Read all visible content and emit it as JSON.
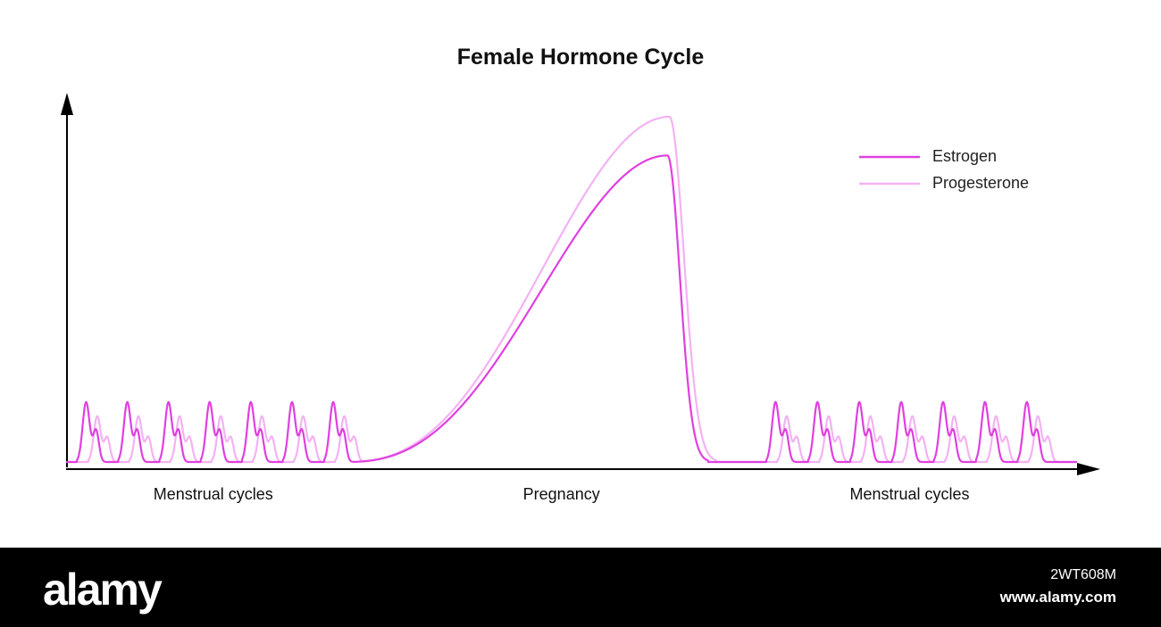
{
  "chart_data": {
    "type": "line",
    "title": "Female Hormone Cycle",
    "xlabel": "",
    "ylabel": "",
    "grid": false,
    "legend_position": "top-right",
    "x_range": [
      0,
      100
    ],
    "y_range": [
      0,
      100
    ],
    "phases": [
      {
        "label": "Menstrual cycles",
        "x": 14.5
      },
      {
        "label": "Pregnancy",
        "x": 49.0
      },
      {
        "label": "Menstrual cycles",
        "x": 83.5
      }
    ],
    "series": [
      {
        "name": "Estrogen",
        "color": "#e040e0",
        "cycles": {
          "first": {
            "count": 7,
            "start": 1.0,
            "period": 4.08,
            "main_peak": 17,
            "secondary_peak": 9
          },
          "second": {
            "count": 7,
            "start": 69.3,
            "period": 4.15,
            "main_peak": 17,
            "secondary_peak": 9
          }
        },
        "pregnancy": {
          "start": 27.5,
          "peak_x": 59.5,
          "peak": 87,
          "end": 63.5
        }
      },
      {
        "name": "Progesterone",
        "color": "#f4b2f4",
        "cycles": {
          "first": {
            "count": 7,
            "start": 2.1,
            "period": 4.08,
            "main_peak": 13,
            "secondary_peak": 7
          },
          "second": {
            "count": 7,
            "start": 70.4,
            "period": 4.15,
            "main_peak": 13,
            "secondary_peak": 7
          }
        },
        "pregnancy": {
          "start": 27.5,
          "peak_x": 59.7,
          "peak": 98,
          "end": 64.3
        }
      }
    ]
  },
  "footer": {
    "logo": "alamy",
    "image_id": "2WT608M",
    "url": "www.alamy.com"
  }
}
